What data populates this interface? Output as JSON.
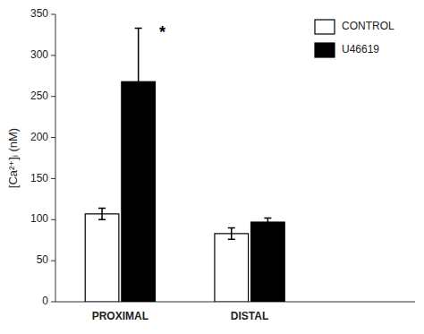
{
  "chart_data": {
    "type": "bar",
    "ylabel": "[Ca²⁺]ᵢ (nM)",
    "categories": [
      "PROXIMAL",
      "DISTAL"
    ],
    "series": [
      {
        "name": "CONTROL",
        "color": "#ffffff",
        "values": [
          107,
          83
        ],
        "errors": [
          7,
          7
        ]
      },
      {
        "name": "U46619",
        "color": "#000000",
        "values": [
          268,
          97
        ],
        "errors": [
          65,
          5
        ]
      }
    ],
    "annotations": [
      {
        "text": "*",
        "category": "PROXIMAL",
        "series": "U46619"
      }
    ],
    "ylim": [
      0,
      350
    ],
    "yticks": [
      0,
      50,
      100,
      150,
      200,
      250,
      300,
      350
    ],
    "grid": false,
    "legend": "upper right"
  }
}
